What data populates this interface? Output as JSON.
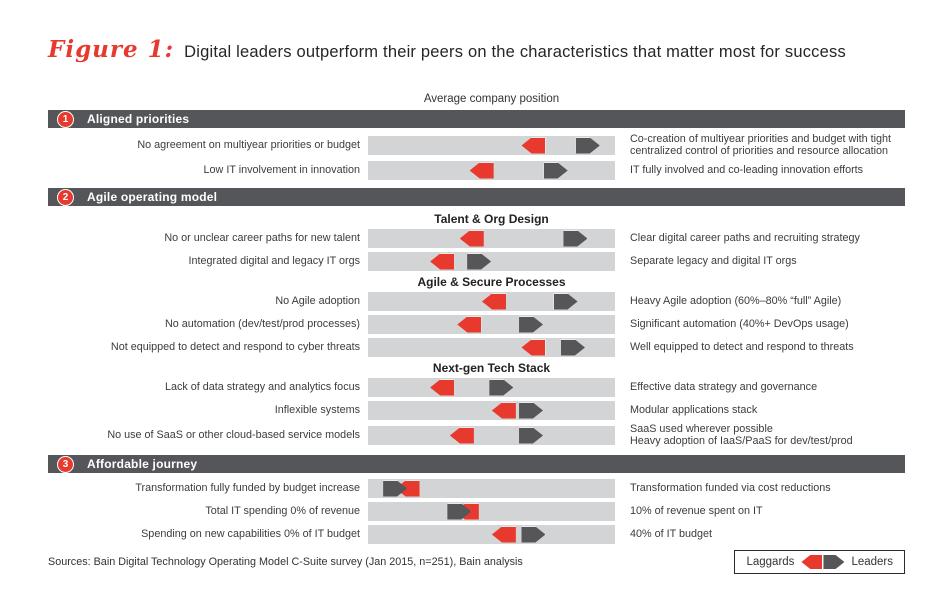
{
  "title": {
    "figure_label": "Figure 1:",
    "text": "Digital leaders outperform their peers on the characteristics that matter most for success"
  },
  "axis_note": "Average company position",
  "legend": {
    "laggards": "Laggards",
    "leaders": "Leaders"
  },
  "sources": "Sources: Bain Digital Technology Operating Model C-Suite survey (Jan 2015, n=251), Bain analysis",
  "colors": {
    "laggard_red": "#e8392f",
    "leader_gray": "#565659",
    "section_bar_gray": "#545659",
    "track_gray": "#d3d4d5"
  },
  "chart_data": {
    "type": "scatter",
    "orientation": "horizontal",
    "xlim": [
      0,
      100
    ],
    "xlabel": "Average company position (laggard statement = 0, leader statement = 100)",
    "marker_series": [
      "Laggards",
      "Leaders"
    ],
    "sections": [
      {
        "number": "1",
        "title": "Aligned priorities",
        "subsections": [
          {
            "title": "",
            "rows": [
              {
                "left": "No agreement on multiyear priorities or budget",
                "right": "Co-creation of multiyear priorities and budget with tight centralized control of priorities and resource allocation",
                "laggard": 67,
                "leader": 89
              },
              {
                "left": "Low IT involvement in innovation",
                "right": "IT fully involved and co-leading innovation efforts",
                "laggard": 46,
                "leader": 76
              }
            ]
          }
        ]
      },
      {
        "number": "2",
        "title": "Agile operating model",
        "subsections": [
          {
            "title": "Talent & Org Design",
            "rows": [
              {
                "left": "No or unclear career paths for new talent",
                "right": "Clear digital career paths and recruiting strategy",
                "laggard": 42,
                "leader": 84
              },
              {
                "left": "Integrated digital and legacy IT orgs",
                "right": "Separate legacy and digital IT orgs",
                "laggard": 30,
                "leader": 45
              }
            ]
          },
          {
            "title": "Agile & Secure Processes",
            "rows": [
              {
                "left": "No Agile adoption",
                "right": "Heavy Agile adoption (60%–80% “full” Agile)",
                "laggard": 51,
                "leader": 80
              },
              {
                "left": "No automation (dev/test/prod processes)",
                "right": "Significant automation (40%+ DevOps usage)",
                "laggard": 41,
                "leader": 66
              },
              {
                "left": "Not equipped to detect and respond to cyber threats",
                "right": "Well equipped to detect and respond to threats",
                "laggard": 67,
                "leader": 83
              }
            ]
          },
          {
            "title": "Next-gen Tech Stack",
            "rows": [
              {
                "left": "Lack of data strategy and analytics focus",
                "right": "Effective data strategy and governance",
                "laggard": 30,
                "leader": 54
              },
              {
                "left": "Inflexible systems",
                "right": "Modular applications stack",
                "laggard": 55,
                "leader": 66
              },
              {
                "left": "No use of SaaS or other cloud-based service models",
                "right": "SaaS used wherever possible",
                "right2": "Heavy adoption of IaaS/PaaS for dev/test/prod",
                "laggard": 38,
                "leader": 66
              }
            ]
          }
        ]
      },
      {
        "number": "3",
        "title": "Affordable journey",
        "subsections": [
          {
            "title": "",
            "rows": [
              {
                "left": "Transformation fully funded by budget increase",
                "right": "Transformation funded via cost reductions",
                "laggard": 16,
                "leader": 11
              },
              {
                "left": "Total IT spending 0% of revenue",
                "right": "10% of revenue spent on IT",
                "laggard": 40,
                "leader": 37
              },
              {
                "left": "Spending on new capabilities 0% of IT budget",
                "right": "40% of IT budget",
                "laggard": 55,
                "leader": 67
              }
            ]
          }
        ]
      }
    ]
  }
}
